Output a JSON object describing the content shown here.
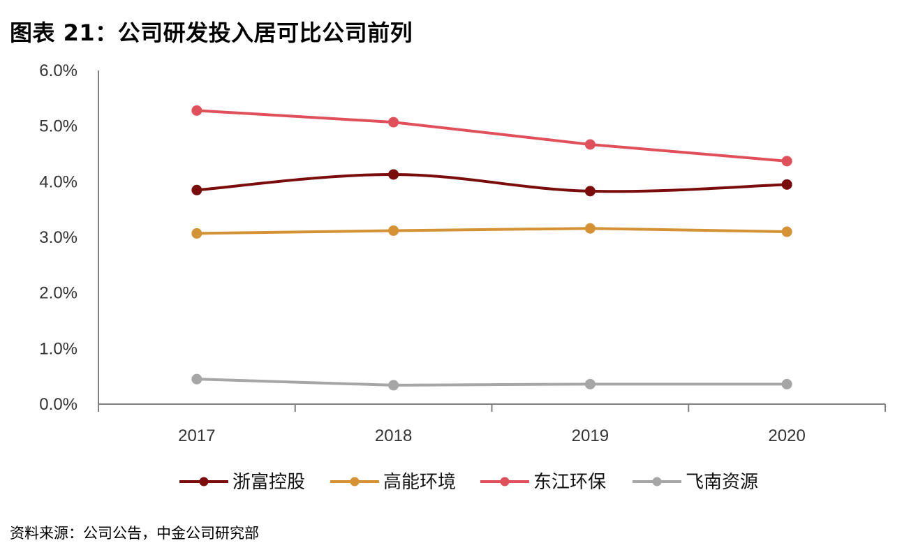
{
  "title": "图表 21：公司研发投入居可比公司前列",
  "source": "资料来源：公司公告，中金公司研究部",
  "chart_data": {
    "type": "line",
    "x": [
      "2017",
      "2018",
      "2019",
      "2020"
    ],
    "ylim": [
      0,
      6
    ],
    "yticks": [
      "0.0%",
      "1.0%",
      "2.0%",
      "3.0%",
      "4.0%",
      "5.0%",
      "6.0%"
    ],
    "ytick_values": [
      0,
      1,
      2,
      3,
      4,
      5,
      6
    ],
    "grid": false,
    "legend_position": "bottom",
    "series": [
      {
        "name": "浙富控股",
        "color": "#7a0c0c",
        "values": [
          3.85,
          4.13,
          3.83,
          3.95
        ],
        "smooth": true
      },
      {
        "name": "高能环境",
        "color": "#d49235",
        "values": [
          3.07,
          3.12,
          3.16,
          3.1
        ],
        "smooth": false
      },
      {
        "name": "东江环保",
        "color": "#e0505a",
        "values": [
          5.28,
          5.07,
          4.67,
          4.37
        ],
        "smooth": false
      },
      {
        "name": "飞南资源",
        "color": "#a6a6a6",
        "values": [
          0.45,
          0.34,
          0.36,
          0.36
        ],
        "smooth": false
      }
    ]
  }
}
